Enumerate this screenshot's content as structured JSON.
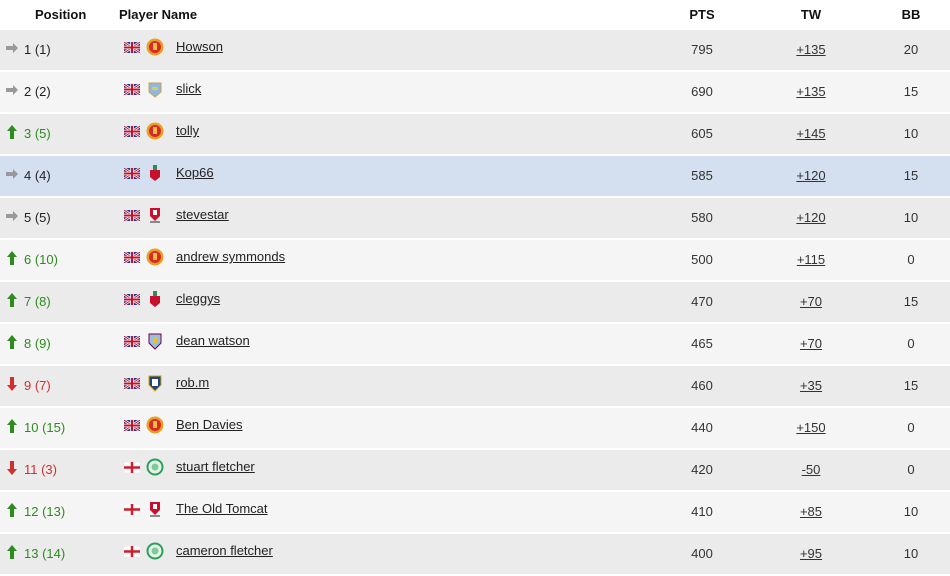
{
  "header": {
    "position": "Position",
    "player_name": "Player Name",
    "pts": "PTS",
    "tw": "TW",
    "bb": "BB"
  },
  "colors": {
    "up": "#2e8b1e",
    "down": "#d03030",
    "same": "#999999",
    "highlight_row": "#d4dff0"
  },
  "rows": [
    {
      "position": "1 (1)",
      "trend": "same",
      "flag": "uk",
      "club": "man-utd",
      "name": "Howson",
      "pts": "795",
      "tw": "+135",
      "bb": "20"
    },
    {
      "position": "2 (2)",
      "trend": "same",
      "flag": "uk",
      "club": "man-city",
      "name": "slick",
      "pts": "690",
      "tw": "+135",
      "bb": "15"
    },
    {
      "position": "3 (5)",
      "trend": "up",
      "flag": "uk",
      "club": "man-utd",
      "name": "tolly",
      "pts": "605",
      "tw": "+145",
      "bb": "10"
    },
    {
      "position": "4 (4)",
      "trend": "same",
      "flag": "uk",
      "club": "liverpool",
      "name": "Kop66",
      "pts": "585",
      "tw": "+120",
      "bb": "15",
      "highlighted": true
    },
    {
      "position": "5 (5)",
      "trend": "same",
      "flag": "uk",
      "club": "cheltenham",
      "name": "stevestar",
      "pts": "580",
      "tw": "+120",
      "bb": "10"
    },
    {
      "position": "6 (10)",
      "trend": "up",
      "flag": "uk",
      "club": "man-utd",
      "name": "andrew symmonds",
      "pts": "500",
      "tw": "+115",
      "bb": "0"
    },
    {
      "position": "7 (8)",
      "trend": "up",
      "flag": "uk",
      "club": "liverpool",
      "name": "cleggys",
      "pts": "470",
      "tw": "+70",
      "bb": "15"
    },
    {
      "position": "8 (9)",
      "trend": "up",
      "flag": "uk",
      "club": "aston-villa",
      "name": "dean watson",
      "pts": "465",
      "tw": "+70",
      "bb": "0"
    },
    {
      "position": "9 (7)",
      "trend": "down",
      "flag": "uk",
      "club": "leeds",
      "name": "rob.m",
      "pts": "460",
      "tw": "+35",
      "bb": "15"
    },
    {
      "position": "10 (15)",
      "trend": "up",
      "flag": "uk",
      "club": "man-utd",
      "name": "Ben Davies",
      "pts": "440",
      "tw": "+150",
      "bb": "0"
    },
    {
      "position": "11 (3)",
      "trend": "down",
      "flag": "england",
      "club": "celtic",
      "name": "stuart fletcher",
      "pts": "420",
      "tw": "-50",
      "bb": "0"
    },
    {
      "position": "12 (13)",
      "trend": "up",
      "flag": "england",
      "club": "cheltenham",
      "name": "The Old Tomcat",
      "pts": "410",
      "tw": "+85",
      "bb": "10"
    },
    {
      "position": "13 (14)",
      "trend": "up",
      "flag": "england",
      "club": "celtic",
      "name": "cameron fletcher",
      "pts": "400",
      "tw": "+95",
      "bb": "10"
    }
  ]
}
